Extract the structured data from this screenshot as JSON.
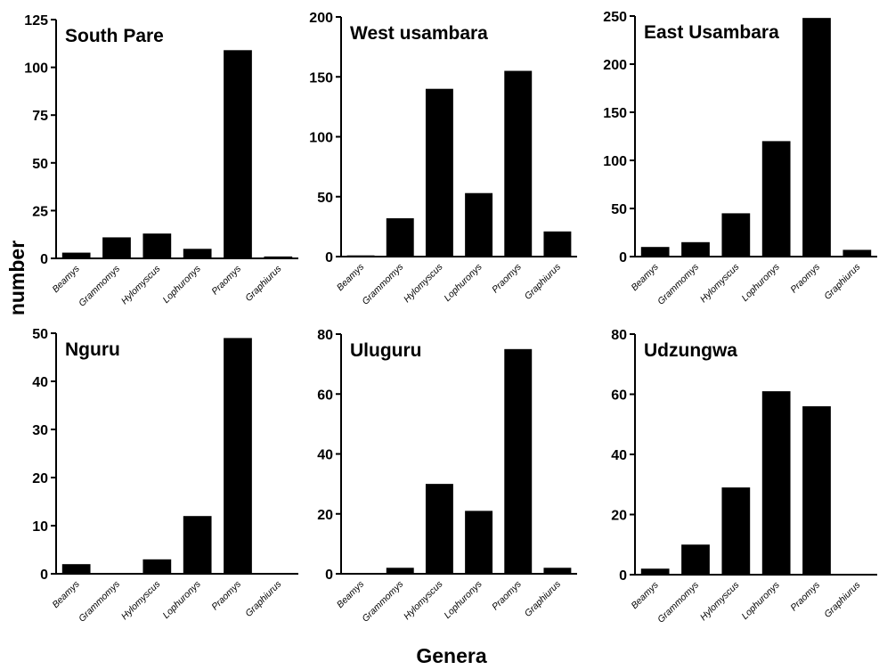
{
  "figure": {
    "ylabel": "number",
    "xlabel": "Genera"
  },
  "chart_data": [
    {
      "type": "bar",
      "title": "South Pare",
      "categories": [
        "Beamys",
        "Grammomys",
        "Hylomyscus",
        "Lophuronys",
        "Praomys",
        "Graphiurus"
      ],
      "values": [
        3,
        11,
        13,
        5,
        109,
        1
      ],
      "ylim": [
        0,
        125
      ],
      "yticks": [
        0,
        25,
        50,
        75,
        100,
        125
      ],
      "color": "#000000"
    },
    {
      "type": "bar",
      "title": "West usambara",
      "categories": [
        "Beamys",
        "Grammomys",
        "Hylomyscus",
        "Lophuronys",
        "Praomys",
        "Graphiurus"
      ],
      "values": [
        1,
        32,
        140,
        53,
        155,
        21
      ],
      "ylim": [
        0,
        200
      ],
      "yticks": [
        0,
        50,
        100,
        150,
        200
      ],
      "color": "#000000"
    },
    {
      "type": "bar",
      "title": "East Usambara",
      "categories": [
        "Beamys",
        "Grammomys",
        "Hylomyscus",
        "Lophuronys",
        "Praomys",
        "Graphiurus"
      ],
      "values": [
        10,
        15,
        45,
        120,
        248,
        7
      ],
      "ylim": [
        0,
        250
      ],
      "yticks": [
        0,
        50,
        100,
        150,
        200,
        250
      ],
      "color": "#000000"
    },
    {
      "type": "bar",
      "title": "Nguru",
      "categories": [
        "Beamys",
        "Grammomys",
        "Hylomyscus",
        "Lophuronys",
        "Praomys",
        "Graphiurus"
      ],
      "values": [
        2,
        0,
        3,
        12,
        49,
        0
      ],
      "ylim": [
        0,
        50
      ],
      "yticks": [
        0,
        10,
        20,
        30,
        40,
        50
      ],
      "color": "#000000"
    },
    {
      "type": "bar",
      "title": "Uluguru",
      "categories": [
        "Beamys",
        "Grammomys",
        "Hylomyscus",
        "Lophuronys",
        "Praomys",
        "Graphiurus"
      ],
      "values": [
        0,
        2,
        30,
        21,
        75,
        2
      ],
      "ylim": [
        0,
        80
      ],
      "yticks": [
        0,
        20,
        40,
        60,
        80
      ],
      "color": "#000000"
    },
    {
      "type": "bar",
      "title": "Udzungwa",
      "categories": [
        "Beamys",
        "Grammomys",
        "Hylomyscus",
        "Lophuronys",
        "Praomys",
        "Graphiurus"
      ],
      "values": [
        2,
        10,
        29,
        61,
        56,
        0
      ],
      "ylim": [
        0,
        80
      ],
      "yticks": [
        0,
        20,
        40,
        60,
        80
      ],
      "color": "#000000"
    }
  ]
}
